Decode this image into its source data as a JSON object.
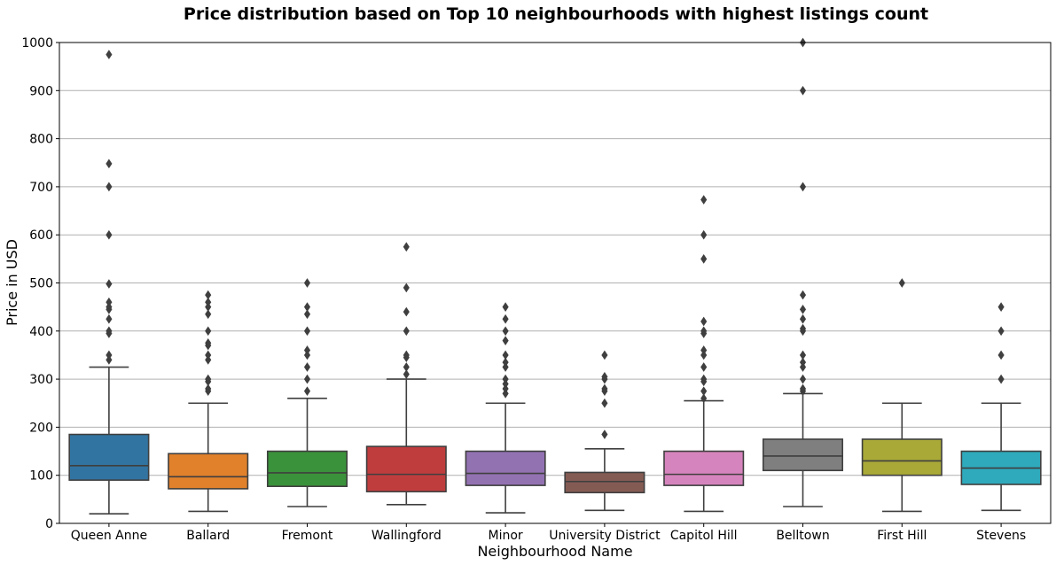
{
  "chart_data": {
    "type": "box",
    "title": "Price distribution based on Top 10 neighbourhoods with highest listings count",
    "xlabel": "Neighbourhood Name",
    "ylabel": "Price in USD",
    "ylim": [
      0,
      1000
    ],
    "yticks": [
      0,
      100,
      200,
      300,
      400,
      500,
      600,
      700,
      800,
      900,
      1000
    ],
    "grid": "horizontal",
    "categories": [
      "Queen Anne",
      "Ballard",
      "Fremont",
      "Wallingford",
      "Minor",
      "University District",
      "Capitol Hill",
      "Belltown",
      "First Hill",
      "Stevens"
    ],
    "boxes": [
      {
        "category": "Queen Anne",
        "color": "#3274a1",
        "whisker_low": 20,
        "q1": 90,
        "median": 120,
        "q3": 185,
        "whisker_high": 325,
        "outliers": [
          340,
          350,
          395,
          400,
          425,
          445,
          450,
          460,
          498,
          600,
          700,
          748,
          975
        ]
      },
      {
        "category": "Ballard",
        "color": "#e1812c",
        "whisker_low": 25,
        "q1": 72,
        "median": 97,
        "q3": 145,
        "whisker_high": 250,
        "outliers": [
          275,
          280,
          295,
          300,
          340,
          350,
          370,
          375,
          400,
          435,
          450,
          460,
          475
        ]
      },
      {
        "category": "Fremont",
        "color": "#3a923a",
        "whisker_low": 35,
        "q1": 77,
        "median": 105,
        "q3": 150,
        "whisker_high": 260,
        "outliers": [
          275,
          300,
          325,
          350,
          360,
          400,
          435,
          450,
          500
        ]
      },
      {
        "category": "Wallingford",
        "color": "#c03d3e",
        "whisker_low": 39,
        "q1": 66,
        "median": 102,
        "q3": 160,
        "whisker_high": 300,
        "outliers": [
          310,
          325,
          345,
          350,
          400,
          440,
          490,
          575
        ]
      },
      {
        "category": "Minor",
        "color": "#9372b2",
        "whisker_low": 22,
        "q1": 79,
        "median": 104,
        "q3": 150,
        "whisker_high": 250,
        "outliers": [
          270,
          280,
          290,
          300,
          325,
          335,
          350,
          380,
          400,
          425,
          450
        ]
      },
      {
        "category": "University District",
        "color": "#845b53",
        "whisker_low": 27,
        "q1": 64,
        "median": 87,
        "q3": 106,
        "whisker_high": 155,
        "outliers": [
          185,
          250,
          275,
          280,
          300,
          305,
          350
        ]
      },
      {
        "category": "Capitol Hill",
        "color": "#d684bd",
        "whisker_low": 25,
        "q1": 79,
        "median": 102,
        "q3": 150,
        "whisker_high": 255,
        "outliers": [
          260,
          275,
          295,
          300,
          325,
          350,
          360,
          395,
          400,
          420,
          550,
          600,
          673
        ]
      },
      {
        "category": "Belltown",
        "color": "#7f7f7f",
        "whisker_low": 35,
        "q1": 110,
        "median": 140,
        "q3": 175,
        "whisker_high": 270,
        "outliers": [
          275,
          280,
          300,
          325,
          335,
          350,
          400,
          405,
          425,
          445,
          475,
          700,
          900,
          1000
        ]
      },
      {
        "category": "First Hill",
        "color": "#a9a938",
        "whisker_low": 25,
        "q1": 100,
        "median": 130,
        "q3": 175,
        "whisker_high": 250,
        "outliers": [
          500
        ]
      },
      {
        "category": "Stevens",
        "color": "#2eaabc",
        "whisker_low": 27,
        "q1": 81,
        "median": 115,
        "q3": 150,
        "whisker_high": 250,
        "outliers": [
          300,
          350,
          400,
          450
        ]
      }
    ]
  }
}
